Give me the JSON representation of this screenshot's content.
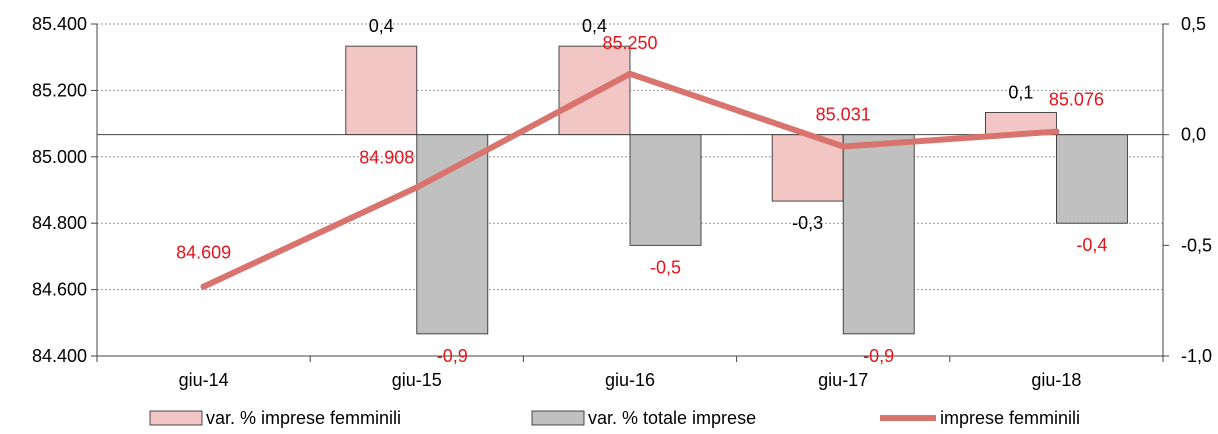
{
  "chart_data": {
    "type": "bar",
    "categories": [
      "giu-14",
      "giu-15",
      "giu-16",
      "giu-17",
      "giu-18"
    ],
    "series": [
      {
        "name": "var. % imprese femminili",
        "kind": "bar",
        "axis": "secondary",
        "values": [
          null,
          0.4,
          0.4,
          -0.3,
          0.1
        ],
        "labels": [
          "",
          "0,4",
          "0,4",
          "-0,3",
          "0,1"
        ],
        "color": "#f2c6c4",
        "label_color": "#000000"
      },
      {
        "name": "var. % totale imprese",
        "kind": "bar",
        "axis": "secondary",
        "values": [
          null,
          -0.9,
          -0.5,
          -0.9,
          -0.4
        ],
        "labels": [
          "",
          "-0,9",
          "-0,5",
          "-0,9",
          "-0,4"
        ],
        "color": "#c0c0c0",
        "label_color": "#e8141b"
      },
      {
        "name": "imprese femminili",
        "kind": "line",
        "axis": "primary",
        "values": [
          84609,
          84908,
          85250,
          85031,
          85076
        ],
        "labels": [
          "84.609",
          "84.908",
          "85.250",
          "85.031",
          "85.076"
        ],
        "color": "#d9736e",
        "label_color": "#e8141b"
      }
    ],
    "y_primary": {
      "ylim": [
        84400,
        85400
      ],
      "ticks": [
        84400,
        84600,
        84800,
        85000,
        85200,
        85400
      ],
      "tick_labels": [
        "84.400",
        "84.600",
        "84.800",
        "85.000",
        "85.200",
        "85.400"
      ]
    },
    "y_secondary": {
      "ylim": [
        -1.0,
        0.5
      ],
      "ticks": [
        -1.0,
        -0.5,
        0.0,
        0.5
      ],
      "tick_labels": [
        "-1,0",
        "-0,5",
        "0,0",
        "0,5"
      ]
    },
    "grid": true,
    "legend_position": "bottom"
  }
}
